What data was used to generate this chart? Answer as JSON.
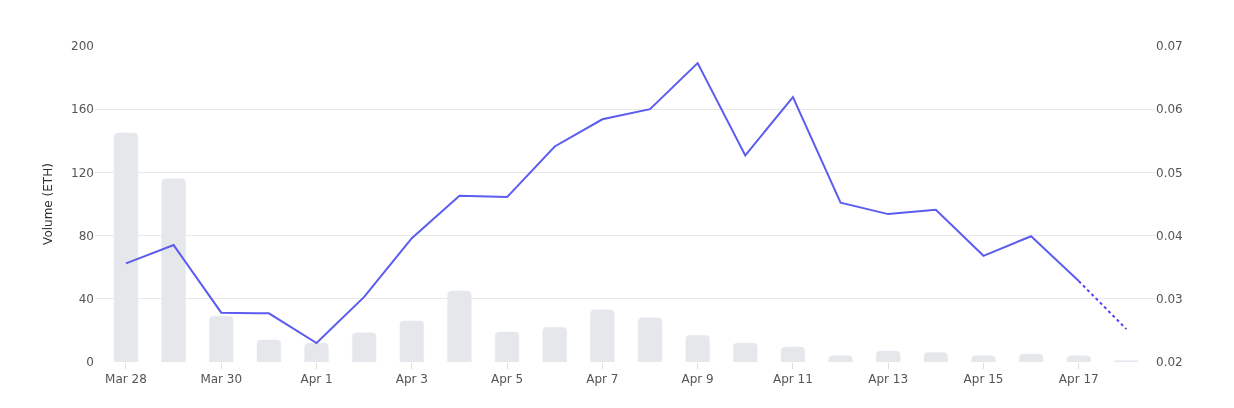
{
  "chart_data": {
    "type": "bar",
    "categories": [
      "Mar 28",
      null,
      "Mar 30",
      null,
      "Apr 1",
      null,
      "Apr 3",
      null,
      "Apr 5",
      null,
      "Apr 7",
      null,
      "Apr 9",
      null,
      "Apr 11",
      null,
      "Apr 13",
      null,
      "Apr 15",
      null,
      "Apr 17",
      null
    ],
    "ylabel": "Volume (ETH)",
    "series": [
      {
        "color": "#e5e7ea",
        "values": [
          145,
          116,
          29,
          14,
          12,
          18.5,
          26,
          45,
          19,
          22,
          33,
          28,
          17,
          12,
          9.5,
          4,
          7,
          6,
          4,
          5,
          4,
          1
        ]
      },
      {
        "type": "line",
        "axis": "y2",
        "color": "#5b5cf0",
        "line_style": "solid",
        "values": [
          0.0356,
          0.0385,
          0.0278,
          0.0277,
          0.023,
          0.0303,
          0.0396,
          0.0463,
          0.0461,
          0.0541,
          0.0584,
          0.06,
          0.0673,
          0.0527,
          0.0619,
          0.0452,
          0.0434,
          0.0441,
          0.0368,
          0.0399,
          0.0328,
          null
        ]
      },
      {
        "type": "line",
        "axis": "y2",
        "color": "#5a3ff0",
        "line_style": "dotted",
        "values": [
          null,
          null,
          null,
          null,
          null,
          null,
          null,
          null,
          null,
          null,
          null,
          null,
          null,
          null,
          null,
          null,
          null,
          null,
          null,
          null,
          0.0328,
          0.0252
        ]
      }
    ],
    "ylim": [
      0,
      200
    ],
    "yticks": [
      0,
      40,
      80,
      120,
      160,
      200
    ],
    "y2lim": [
      0.02,
      0.07
    ],
    "y2ticks": [
      0.02,
      0.03,
      0.04,
      0.05,
      0.06,
      0.07
    ],
    "grid": "y"
  }
}
